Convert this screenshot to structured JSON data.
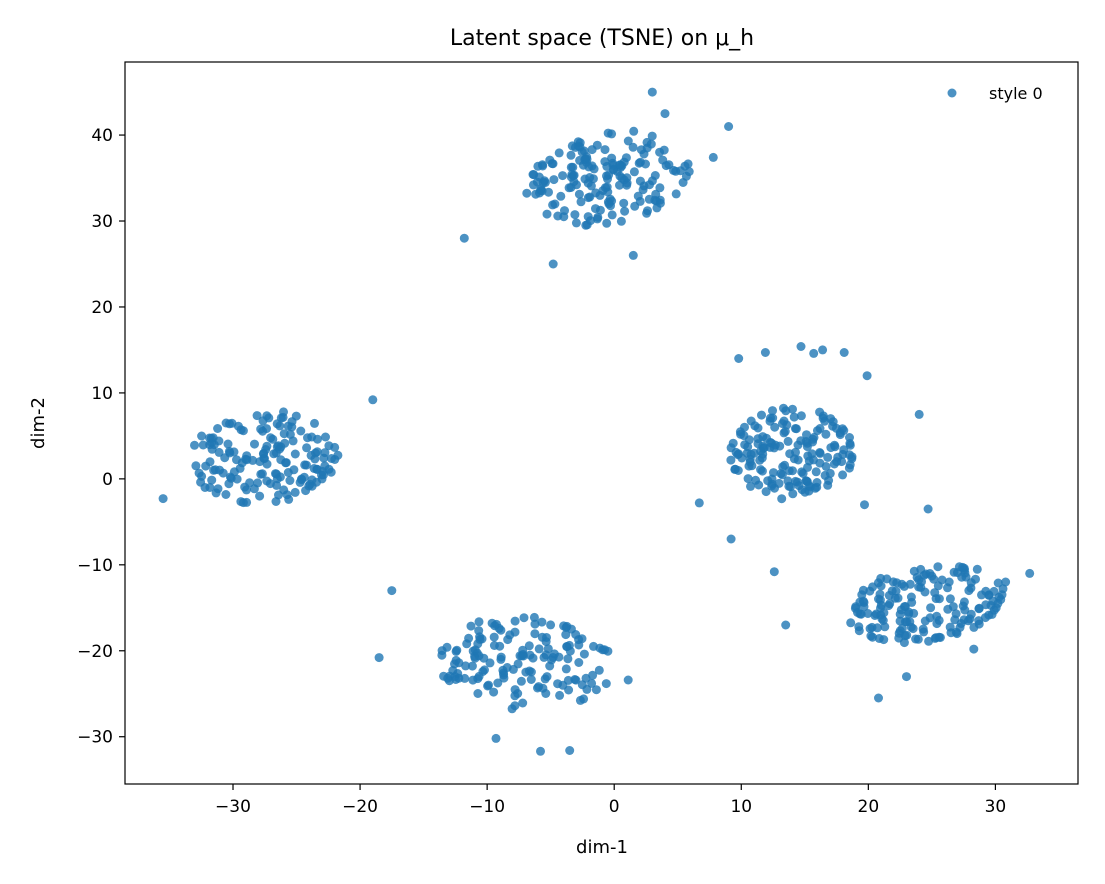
{
  "chart_data": {
    "type": "scatter",
    "title": "Latent space (TSNE) on μ_h",
    "xlabel": "dim-1",
    "ylabel": "dim-2",
    "xlim": [
      -38.5,
      36.5
    ],
    "ylim": [
      -35.5,
      48.5
    ],
    "xticks": [
      -30,
      -20,
      -10,
      0,
      10,
      20,
      30
    ],
    "yticks": [
      -30,
      -20,
      -10,
      0,
      10,
      20,
      30,
      40
    ],
    "xtick_labels": [
      "−30",
      "−20",
      "−10",
      "0",
      "10",
      "20",
      "30"
    ],
    "ytick_labels": [
      "−30",
      "−20",
      "−10",
      "0",
      "10",
      "20",
      "30",
      "40"
    ],
    "grid": false,
    "legend_position": "top-right",
    "marker_color": "#1f77b4",
    "marker_alpha": 0.8,
    "series": [
      {
        "name": "style 0",
        "clusters": [
          {
            "center": [
              -0.5,
              35
            ],
            "spread": [
              7,
              5.5
            ],
            "count": 170,
            "angle": 0.45,
            "seed": 11
          },
          {
            "center": [
              -27.5,
              2.5
            ],
            "spread": [
              6,
              5.5
            ],
            "count": 160,
            "angle": 0.25,
            "seed": 23
          },
          {
            "center": [
              -7,
              -21.5
            ],
            "spread": [
              7,
              5.5
            ],
            "count": 150,
            "angle": -0.15,
            "seed": 37
          },
          {
            "center": [
              14,
              3
            ],
            "spread": [
              5,
              5.5
            ],
            "count": 165,
            "angle": 0.3,
            "seed": 41
          },
          {
            "center": [
              24.5,
              -14.5
            ],
            "spread": [
              6.5,
              4.5
            ],
            "count": 165,
            "angle": 0.35,
            "seed": 53
          }
        ],
        "points": [
          [
            -35.5,
            -2.3
          ],
          [
            -19,
            9.2
          ],
          [
            -17.5,
            -13
          ],
          [
            -18.5,
            -20.8
          ],
          [
            -9.3,
            -30.2
          ],
          [
            -5.8,
            -31.7
          ],
          [
            -3.5,
            -31.6
          ],
          [
            1.1,
            -23.4
          ],
          [
            3,
            45
          ],
          [
            4,
            42.5
          ],
          [
            9,
            41
          ],
          [
            7.8,
            37.4
          ],
          [
            -11.8,
            28
          ],
          [
            -4.8,
            25
          ],
          [
            1.5,
            26
          ],
          [
            6.7,
            -2.8
          ],
          [
            9.2,
            -7
          ],
          [
            12.6,
            -10.8
          ],
          [
            13.5,
            -17
          ],
          [
            16.4,
            15
          ],
          [
            18.1,
            14.7
          ],
          [
            19.9,
            12
          ],
          [
            19.7,
            -3
          ],
          [
            20.8,
            -25.5
          ],
          [
            23,
            -23
          ],
          [
            30.8,
            -12
          ],
          [
            32.7,
            -11
          ],
          [
            29.8,
            -14.2
          ],
          [
            28.3,
            -19.8
          ],
          [
            24.7,
            -3.5
          ],
          [
            14.7,
            15.4
          ],
          [
            9.8,
            14
          ],
          [
            11.9,
            14.7
          ],
          [
            15.7,
            14.6
          ],
          [
            24,
            7.5
          ]
        ]
      }
    ]
  }
}
